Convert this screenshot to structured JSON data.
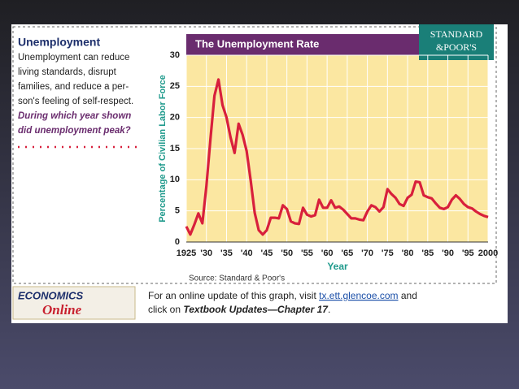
{
  "sidebar": {
    "heading": "Unemployment",
    "body": [
      "Unemployment can reduce",
      "living standards, disrupt",
      "families, and reduce a per-",
      "son's feeling of self-respect."
    ],
    "question": [
      "During which year shown",
      "did unemployment peak?"
    ]
  },
  "logo": [
    "STANDARD",
    "&POOR'S"
  ],
  "chart_data": {
    "type": "line",
    "title": "The Unemployment Rate",
    "x": [
      1925,
      1926,
      1927,
      1928,
      1929,
      1930,
      1931,
      1932,
      1933,
      1934,
      1935,
      1936,
      1937,
      1938,
      1939,
      1940,
      1941,
      1942,
      1943,
      1944,
      1945,
      1946,
      1947,
      1948,
      1949,
      1950,
      1951,
      1952,
      1953,
      1954,
      1955,
      1956,
      1957,
      1958,
      1959,
      1960,
      1961,
      1962,
      1963,
      1964,
      1965,
      1966,
      1967,
      1968,
      1969,
      1970,
      1971,
      1972,
      1973,
      1974,
      1975,
      1976,
      1977,
      1978,
      1979,
      1980,
      1981,
      1982,
      1983,
      1984,
      1985,
      1986,
      1987,
      1988,
      1989,
      1990,
      1991,
      1992,
      1993,
      1994,
      1995,
      1996,
      1997,
      1998,
      1999,
      2000
    ],
    "values": [
      2.5,
      1.2,
      2.8,
      4.6,
      3.0,
      9.0,
      16.5,
      23.5,
      26.1,
      22.0,
      20.0,
      16.8,
      14.3,
      19.0,
      17.2,
      14.6,
      9.9,
      4.7,
      1.9,
      1.2,
      1.9,
      3.9,
      3.9,
      3.8,
      5.9,
      5.3,
      3.3,
      3.0,
      2.9,
      5.5,
      4.4,
      4.1,
      4.3,
      6.8,
      5.5,
      5.5,
      6.7,
      5.5,
      5.7,
      5.2,
      4.5,
      3.8,
      3.8,
      3.6,
      3.5,
      4.9,
      5.9,
      5.6,
      4.9,
      5.6,
      8.5,
      7.7,
      7.1,
      6.1,
      5.8,
      7.1,
      7.6,
      9.7,
      9.6,
      7.5,
      7.2,
      7.0,
      6.2,
      5.5,
      5.3,
      5.6,
      6.8,
      7.5,
      6.9,
      6.1,
      5.6,
      5.4,
      4.9,
      4.5,
      4.2,
      4.0
    ],
    "color": "#d8203c",
    "xlabel": "Year",
    "ylabel": "Percentage of Civilian Labor Force",
    "source": "Source: Standard & Poor's",
    "xlim": [
      1925,
      2000
    ],
    "xticks": [
      1925,
      {
        "value": 1930,
        "label": "'30"
      },
      {
        "value": 1935,
        "label": "'35"
      },
      {
        "value": 1940,
        "label": "'40"
      },
      {
        "value": 1945,
        "label": "'45"
      },
      {
        "value": 1950,
        "label": "'50"
      },
      {
        "value": 1955,
        "label": "'55"
      },
      {
        "value": 1960,
        "label": "'60"
      },
      {
        "value": 1965,
        "label": "'65"
      },
      {
        "value": 1970,
        "label": "'70"
      },
      {
        "value": 1975,
        "label": "'75"
      },
      {
        "value": 1980,
        "label": "'80"
      },
      {
        "value": 1985,
        "label": "'85"
      },
      {
        "value": 1990,
        "label": "'90"
      },
      {
        "value": 1995,
        "label": "'95"
      },
      2000
    ],
    "ylim": [
      0,
      30
    ],
    "yticks": [
      0,
      5,
      10,
      15,
      20,
      25,
      30
    ],
    "grid": true
  },
  "banner": {
    "logo": [
      "ECONOMICS",
      "Online"
    ],
    "line1": [
      "For an online update of this graph, visit ",
      "tx.ett.glencoe.com",
      " and"
    ],
    "line2": [
      "click on ",
      "Textbook Updates—Chapter 17",
      "."
    ]
  }
}
